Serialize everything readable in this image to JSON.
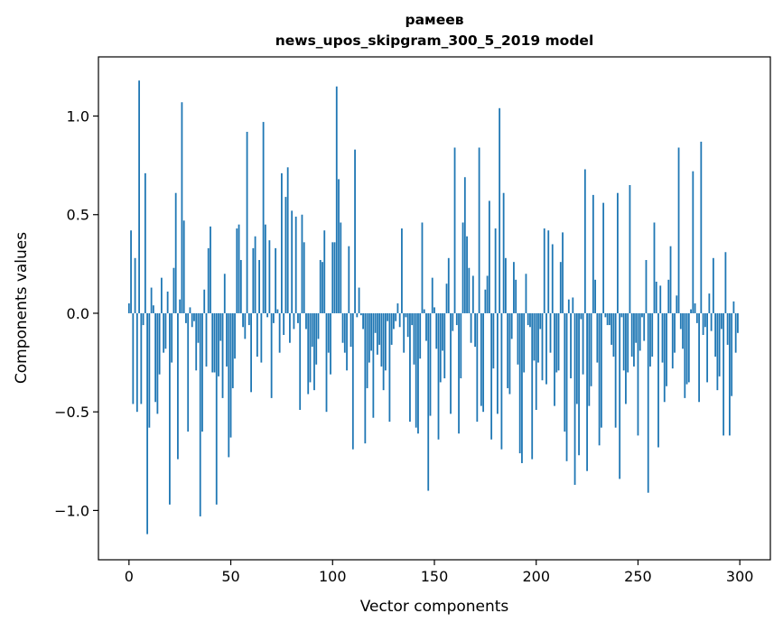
{
  "chart_data": {
    "type": "bar",
    "title": "рамеев",
    "subtitle": "news_upos_skipgram_300_5_2019 model",
    "xlabel": "Vector components",
    "ylabel": "Components values",
    "xlim": [
      -15,
      315
    ],
    "ylim": [
      -1.25,
      1.3
    ],
    "grid": false,
    "color": "#1f77b4",
    "xticks": [
      0,
      50,
      100,
      150,
      200,
      250,
      300
    ],
    "xtick_labels": [
      "0",
      "50",
      "100",
      "150",
      "200",
      "250",
      "300"
    ],
    "yticks": [
      -1.0,
      -0.5,
      0.0,
      0.5,
      1.0
    ],
    "ytick_labels": [
      "−1.0",
      "−0.5",
      "0.0",
      "0.5",
      "1.0"
    ],
    "values": [
      0.05,
      0.42,
      -0.46,
      0.28,
      -0.5,
      1.18,
      -0.46,
      -0.06,
      0.71,
      -1.12,
      -0.58,
      0.13,
      0.04,
      -0.45,
      -0.51,
      -0.31,
      0.18,
      -0.2,
      -0.18,
      0.11,
      -0.97,
      -0.25,
      0.23,
      0.61,
      -0.74,
      0.07,
      1.07,
      0.47,
      -0.05,
      -0.6,
      0.03,
      -0.07,
      -0.04,
      -0.29,
      -0.15,
      -1.03,
      -0.6,
      0.12,
      -0.27,
      0.33,
      0.44,
      -0.3,
      -0.3,
      -0.97,
      -0.32,
      -0.14,
      -0.43,
      0.2,
      -0.27,
      -0.73,
      -0.63,
      -0.38,
      -0.23,
      0.43,
      0.45,
      0.27,
      -0.07,
      -0.13,
      0.92,
      -0.06,
      -0.4,
      0.33,
      0.39,
      -0.22,
      0.27,
      -0.25,
      0.97,
      0.45,
      -0.02,
      0.37,
      -0.43,
      -0.05,
      0.33,
      0.02,
      -0.2,
      0.71,
      -0.11,
      0.59,
      0.74,
      -0.15,
      0.52,
      -0.08,
      0.49,
      -0.05,
      -0.49,
      0.5,
      0.36,
      -0.08,
      -0.41,
      -0.35,
      -0.17,
      -0.39,
      -0.26,
      -0.13,
      0.27,
      0.26,
      0.42,
      -0.5,
      -0.2,
      -0.31,
      0.36,
      0.36,
      1.15,
      0.68,
      0.46,
      -0.15,
      -0.2,
      -0.29,
      0.34,
      -0.17,
      -0.69,
      0.83,
      -0.02,
      0.13,
      -0.01,
      -0.08,
      -0.66,
      -0.38,
      -0.25,
      -0.19,
      -0.53,
      -0.1,
      -0.21,
      -0.16,
      -0.27,
      -0.39,
      -0.29,
      -0.04,
      -0.55,
      -0.16,
      -0.08,
      -0.04,
      0.05,
      -0.07,
      0.43,
      -0.2,
      -0.02,
      -0.12,
      -0.55,
      -0.06,
      -0.26,
      -0.58,
      -0.61,
      -0.23,
      0.46,
      0.02,
      -0.14,
      -0.9,
      -0.52,
      0.18,
      0.03,
      -0.18,
      -0.64,
      -0.35,
      -0.19,
      -0.33,
      0.15,
      0.28,
      -0.51,
      -0.09,
      0.84,
      -0.06,
      -0.61,
      -0.33,
      0.46,
      0.69,
      0.39,
      0.23,
      -0.15,
      0.19,
      -0.17,
      -0.55,
      0.84,
      -0.47,
      -0.5,
      0.12,
      0.19,
      0.57,
      -0.64,
      -0.28,
      0.43,
      -0.51,
      1.04,
      -0.69,
      0.61,
      0.28,
      -0.38,
      -0.41,
      -0.13,
      0.26,
      0.17,
      -0.26,
      -0.71,
      -0.76,
      -0.3,
      0.2,
      -0.06,
      -0.07,
      -0.74,
      -0.24,
      -0.49,
      -0.25,
      -0.08,
      -0.34,
      0.43,
      -0.36,
      0.42,
      -0.2,
      0.35,
      -0.47,
      -0.3,
      -0.29,
      0.26,
      0.41,
      -0.6,
      -0.75,
      0.07,
      -0.33,
      0.08,
      -0.87,
      -0.46,
      -0.72,
      -0.03,
      -0.31,
      0.73,
      -0.8,
      -0.47,
      -0.37,
      0.6,
      0.17,
      -0.25,
      -0.67,
      -0.58,
      0.56,
      -0.02,
      -0.06,
      -0.06,
      -0.16,
      -0.22,
      -0.58,
      0.61,
      -0.84,
      -0.02,
      -0.29,
      -0.46,
      -0.3,
      0.65,
      -0.22,
      -0.27,
      -0.15,
      -0.62,
      -0.19,
      -0.02,
      -0.14,
      0.27,
      -0.91,
      -0.27,
      -0.22,
      0.46,
      0.16,
      -0.68,
      0.14,
      -0.25,
      -0.45,
      -0.37,
      0.17,
      0.34,
      -0.28,
      -0.2,
      0.09,
      0.84,
      -0.08,
      -0.18,
      -0.43,
      -0.36,
      -0.35,
      0.02,
      0.72,
      0.05,
      -0.05,
      -0.45,
      0.87,
      -0.11,
      -0.07,
      -0.35,
      0.1,
      -0.09,
      0.28,
      -0.22,
      -0.39,
      -0.32,
      -0.08,
      -0.62,
      0.31,
      -0.16,
      -0.62,
      -0.42,
      0.06,
      -0.2,
      -0.1
    ]
  }
}
